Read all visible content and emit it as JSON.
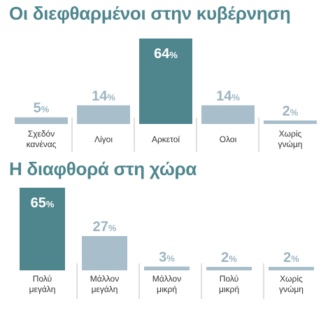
{
  "colors": {
    "title": "#4f868e",
    "highlight_bar": "#4f868e",
    "normal_bar": "#a8bfcb",
    "highlight_value_text": "#ffffff",
    "normal_value_text": "#9cb5c2",
    "separator": "#bfbfbf"
  },
  "chart_data": [
    {
      "type": "bar",
      "title": "Οι διεφθαρμένοι στην κυβέρνηση",
      "unit": "%",
      "categories": [
        [
          "Σχεδόν",
          "κανένας"
        ],
        [
          "Λίγοι"
        ],
        [
          "Αρκετοί"
        ],
        [
          "Ολοι"
        ],
        [
          "Χωρίς",
          "γνώμη"
        ]
      ],
      "values": [
        5,
        14,
        64,
        14,
        2
      ],
      "highlight_index": 2
    },
    {
      "type": "bar",
      "title": "Η διαφθορά στη χώρα",
      "unit": "%",
      "categories": [
        [
          "Πολύ",
          "μεγάλη"
        ],
        [
          "Μάλλον",
          "μεγάλη"
        ],
        [
          "Μάλλον",
          "μικρή"
        ],
        [
          "Πολύ",
          "μικρή"
        ],
        [
          "Χωρίς",
          "γνώμη"
        ]
      ],
      "values": [
        65,
        27,
        3,
        2,
        2
      ],
      "highlight_index": 0
    }
  ]
}
